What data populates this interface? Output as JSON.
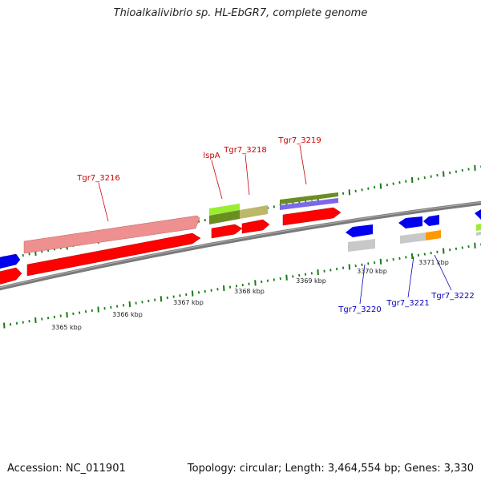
{
  "title": "Thioalkalivibrio sp. HL-EbGR7, complete genome",
  "footer": {
    "accession": "Accession: NC_011901",
    "summary": "Topology: circular; Length: 3,464,554 bp; Genes: 3,330"
  },
  "colors": {
    "backbone": "#808080",
    "ticks": "#1a7a1a",
    "label_top": "#cc0000",
    "label_bottom": "#0000bb",
    "cds_red": "#ff0000",
    "cds_pink": "#ee9090",
    "cds_blue": "#0000ee",
    "cds_grey": "#c8c8c8",
    "cds_orange": "#ff9900",
    "cds_lime": "#99ee33",
    "cds_khaki": "#bdb76b",
    "cds_olive": "#6b8e23",
    "cds_slate": "#7b68ee"
  },
  "ruler": {
    "labels": [
      "3365 kbp",
      "3366 kbp",
      "3367 kbp",
      "3368 kbp",
      "3369 kbp",
      "3370 kbp",
      "3371 kbp"
    ]
  },
  "gene_labels_top": [
    "Tgr7_3216",
    "lspA",
    "Tgr7_3218",
    "Tgr7_3219"
  ],
  "gene_labels_bottom": [
    "Tgr7_3220",
    "Tgr7_3221",
    "Tgr7_3222"
  ]
}
